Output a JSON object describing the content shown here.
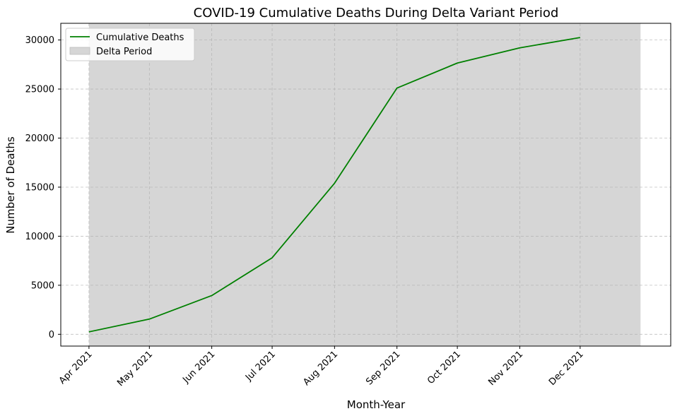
{
  "chart_data": {
    "type": "line",
    "title": "COVID-19 Cumulative Deaths During Delta Variant Period",
    "xlabel": "Month-Year",
    "ylabel": "Number of Deaths",
    "categories": [
      "Apr 2021",
      "May 2021",
      "Jun 2021",
      "Jul 2021",
      "Aug 2021",
      "Sep 2021",
      "Oct 2021",
      "Nov 2021",
      "Dec 2021"
    ],
    "x": [
      "2021-04-01",
      "2021-05-01",
      "2021-06-01",
      "2021-07-01",
      "2021-08-01",
      "2021-09-01",
      "2021-10-01",
      "2021-11-01",
      "2021-12-01"
    ],
    "series": [
      {
        "name": "Cumulative Deaths",
        "color": "#008000",
        "values": [
          250,
          1550,
          3950,
          7800,
          15400,
          25100,
          27650,
          29200,
          30250
        ]
      }
    ],
    "shaded_region": {
      "name": "Delta Period",
      "start": "2021-04-01",
      "end": "2021-12-31",
      "color": "#d6d6d6"
    },
    "xlim": [
      "2021-03-18",
      "2022-01-15"
    ],
    "ylim": [
      -1200,
      31700
    ],
    "yticks": [
      0,
      5000,
      10000,
      15000,
      20000,
      25000,
      30000
    ],
    "grid": true,
    "legend_position": "top-left"
  }
}
